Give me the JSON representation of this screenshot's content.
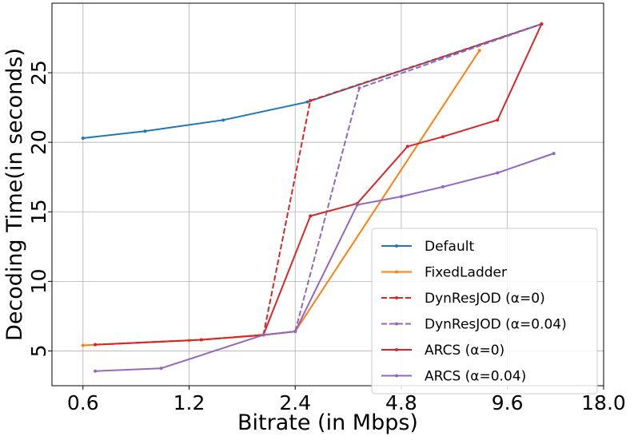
{
  "chart_data": {
    "type": "line",
    "title": "",
    "xlabel": "Bitrate (in Mbps)",
    "ylabel": "Decoding Time(in seconds)",
    "xscale": "log2",
    "xlim": [
      0.49,
      18.0
    ],
    "ylim": [
      2.5,
      30.0
    ],
    "xticks": [
      0.6,
      1.2,
      2.4,
      4.8,
      9.6,
      18.0
    ],
    "xtick_labels": [
      "0.6",
      "1.2",
      "2.4",
      "4.8",
      "9.6",
      "18.0"
    ],
    "yticks": [
      5,
      10,
      15,
      20,
      25
    ],
    "ytick_labels": [
      "5",
      "10",
      "15",
      "20",
      "25"
    ],
    "grid": true,
    "legend_position": "lower-right",
    "series": [
      {
        "name": "Default",
        "color": "#1f77b4",
        "dash": "solid",
        "x": [
          0.6,
          0.9,
          1.5,
          2.6,
          12.0
        ],
        "y": [
          20.3,
          20.8,
          21.6,
          22.9,
          28.5
        ]
      },
      {
        "name": "FixedLadder",
        "color": "#ff7f0e",
        "dash": "solid",
        "x": [
          0.6,
          1.2,
          1.9,
          2.4,
          8.0
        ],
        "y": [
          5.4,
          5.75,
          6.1,
          6.4,
          26.6
        ]
      },
      {
        "name": "DynResJOD (α=0)",
        "color": "#d62728",
        "dash": "dashed",
        "x": [
          0.65,
          1.3,
          1.95,
          2.65,
          12.0
        ],
        "y": [
          5.45,
          5.8,
          6.15,
          23.0,
          28.5
        ]
      },
      {
        "name": "DynResJOD (α=0.04)",
        "color": "#9467bd",
        "dash": "dashed",
        "x": [
          1.95,
          2.4,
          3.65,
          12.0
        ],
        "y": [
          6.15,
          6.4,
          23.9,
          28.5
        ]
      },
      {
        "name": "ARCS (α=0)",
        "color": "#d62728",
        "dash": "solid",
        "x": [
          0.65,
          1.3,
          1.95,
          2.65,
          3.6,
          5.0,
          6.3,
          9.0,
          12.0
        ],
        "y": [
          5.45,
          5.8,
          6.15,
          14.7,
          15.6,
          19.7,
          20.4,
          21.6,
          28.5
        ]
      },
      {
        "name": "ARCS (α=0.04)",
        "color": "#9467bd",
        "dash": "solid",
        "x": [
          0.65,
          1.0,
          1.95,
          2.4,
          3.6,
          4.8,
          6.3,
          9.0,
          13.0
        ],
        "y": [
          3.55,
          3.75,
          6.15,
          6.4,
          15.5,
          16.1,
          16.8,
          17.8,
          19.2
        ]
      }
    ]
  }
}
